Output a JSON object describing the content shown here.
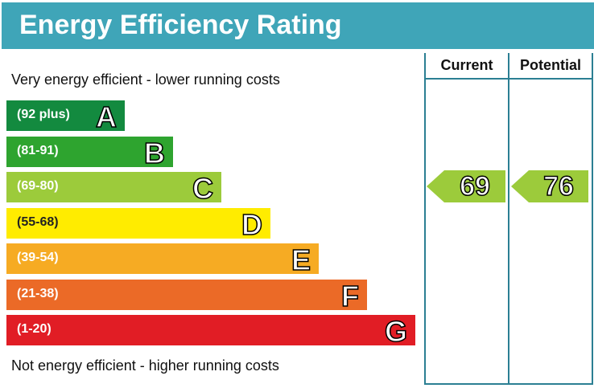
{
  "chart_data": {
    "type": "bar",
    "title": "Energy Efficiency Rating",
    "top_note": "Very energy efficient - lower running costs",
    "bottom_note": "Not energy efficient - higher running costs",
    "bands": [
      {
        "letter": "A",
        "range": "(92 plus)",
        "color": "#138a3f"
      },
      {
        "letter": "B",
        "range": "(81-91)",
        "color": "#2ea42f"
      },
      {
        "letter": "C",
        "range": "(69-80)",
        "color": "#9ccb3b"
      },
      {
        "letter": "D",
        "range": "(55-68)",
        "color": "#ffec00"
      },
      {
        "letter": "E",
        "range": "(39-54)",
        "color": "#f6ab23"
      },
      {
        "letter": "F",
        "range": "(21-38)",
        "color": "#eb6a27"
      },
      {
        "letter": "G",
        "range": "(1-20)",
        "color": "#e11d25"
      }
    ],
    "columns": {
      "current": "Current",
      "potential": "Potential"
    },
    "current": {
      "value": "69",
      "band": "C",
      "color": "#9ccb3b"
    },
    "potential": {
      "value": "76",
      "band": "C",
      "color": "#9ccb3b"
    }
  }
}
